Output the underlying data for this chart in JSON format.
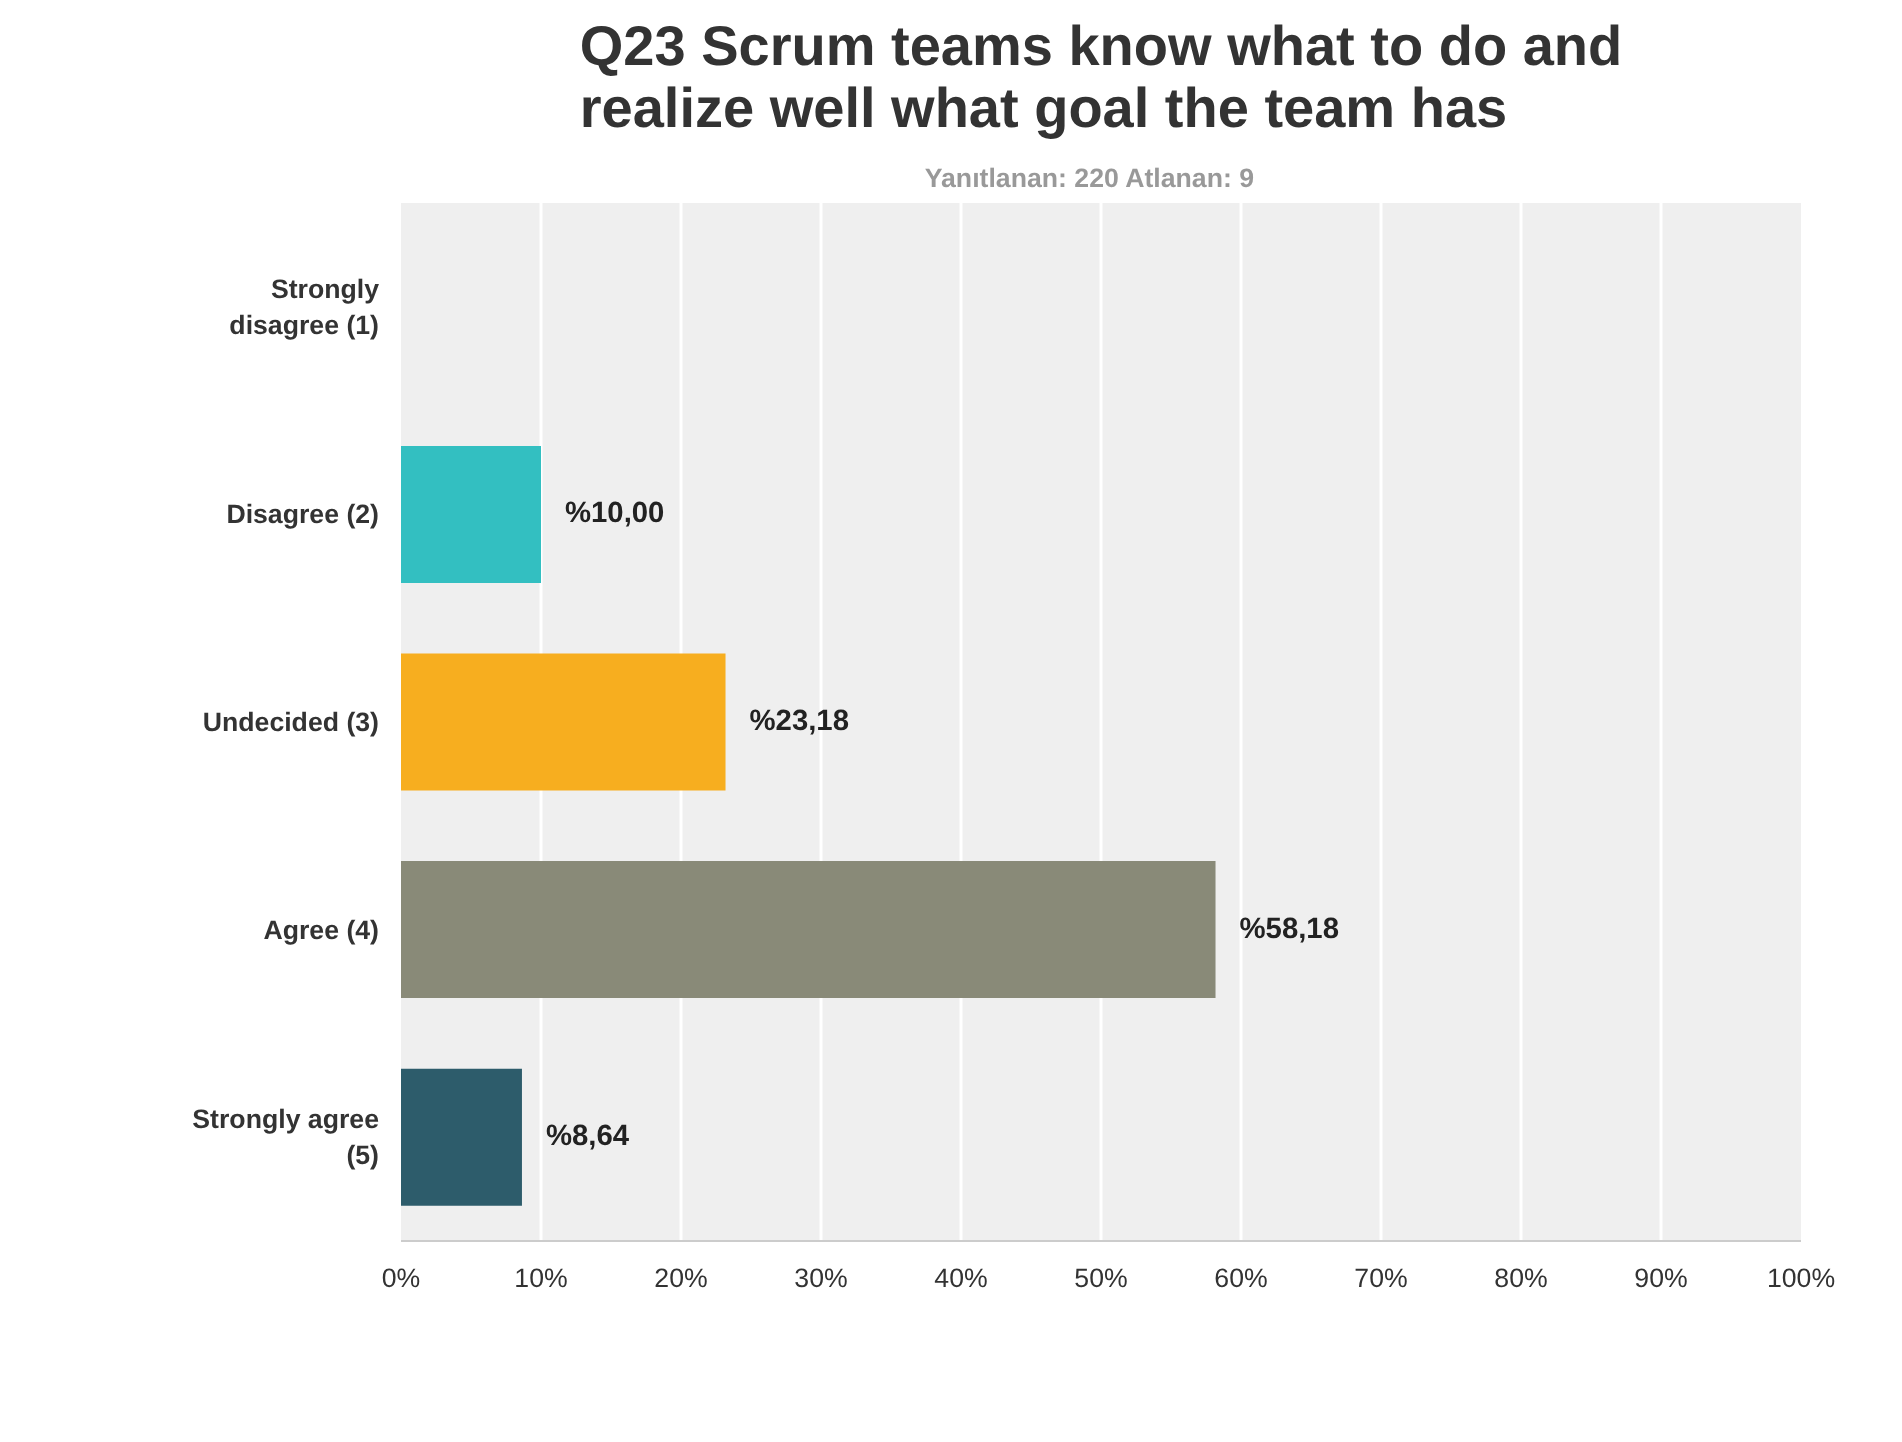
{
  "chart_data": {
    "type": "bar",
    "orientation": "horizontal",
    "title": "Q23 Scrum teams know what to do and realize well what goal the team has",
    "subtitle": "Yanıtlanan: 220    Atlanan: 9",
    "categories": [
      "Strongly disagree (1)",
      "Disagree (2)",
      "Undecided (3)",
      "Agree (4)",
      "Strongly agree (5)"
    ],
    "values": [
      0,
      10.0,
      23.18,
      58.18,
      8.64
    ],
    "colors": [
      "#33bfc1",
      "#33bfc1",
      "#f7ae1f",
      "#898a78",
      "#2d5c6b"
    ],
    "value_labels": [
      null,
      "%10,00",
      "%23,18",
      "%58,18",
      "%8,64"
    ],
    "xlim": [
      0,
      100
    ],
    "xticks": [
      {
        "value": 0,
        "label": "0%"
      },
      {
        "value": 10,
        "label": "10%"
      },
      {
        "value": 20,
        "label": "20%"
      },
      {
        "value": 30,
        "label": "30%"
      },
      {
        "value": 40,
        "label": "40%"
      },
      {
        "value": 50,
        "label": "50%"
      },
      {
        "value": 60,
        "label": "60%"
      },
      {
        "value": 70,
        "label": "70%"
      },
      {
        "value": 80,
        "label": "80%"
      },
      {
        "value": 90,
        "label": "90%"
      },
      {
        "value": 100,
        "label": "100%"
      }
    ],
    "grid": "x"
  }
}
